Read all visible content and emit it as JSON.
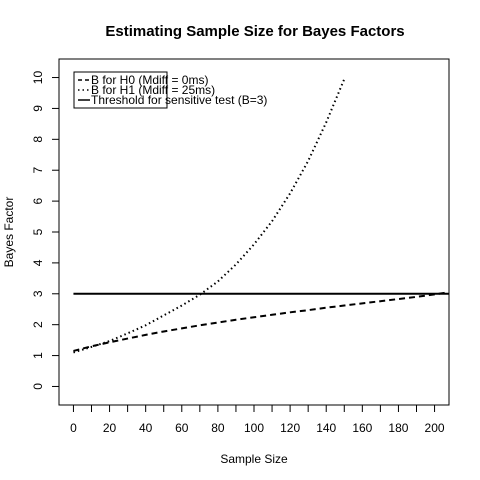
{
  "chart_data": {
    "type": "line",
    "title": "Estimating Sample Size for Bayes Factors",
    "xlabel": "Sample Size",
    "ylabel": "Bayes Factor",
    "xlim": [
      -8,
      208
    ],
    "ylim": [
      -0.6,
      10.6
    ],
    "xticks": [
      0,
      20,
      40,
      60,
      80,
      100,
      120,
      140,
      160,
      180,
      200
    ],
    "xticks_minor": [
      10,
      30,
      50,
      70,
      90,
      110,
      130,
      150,
      170,
      190
    ],
    "yticks": [
      0,
      1,
      2,
      3,
      4,
      5,
      6,
      7,
      8,
      9,
      10
    ],
    "grid": false,
    "legend_position": "top-left",
    "series": [
      {
        "name": "B for H0 (Mdiff = 0ms)",
        "style": "dashed",
        "color": "#000000",
        "x": [
          0,
          10,
          20,
          30,
          40,
          50,
          60,
          70,
          80,
          90,
          100,
          110,
          120,
          130,
          140,
          150,
          160,
          170,
          180,
          190,
          200,
          208
        ],
        "y": [
          1.15,
          1.3,
          1.43,
          1.55,
          1.67,
          1.78,
          1.88,
          1.98,
          2.07,
          2.16,
          2.24,
          2.32,
          2.4,
          2.47,
          2.55,
          2.62,
          2.69,
          2.76,
          2.83,
          2.9,
          2.98,
          3.05
        ]
      },
      {
        "name": "B for H1 (Mdiff = 25ms)",
        "style": "dotted",
        "color": "#000000",
        "x": [
          0,
          10,
          20,
          30,
          40,
          50,
          60,
          70,
          80,
          90,
          100,
          110,
          120,
          130,
          140,
          150
        ],
        "y": [
          1.1,
          1.28,
          1.47,
          1.72,
          1.98,
          2.3,
          2.62,
          2.97,
          3.4,
          3.95,
          4.6,
          5.35,
          6.25,
          7.3,
          8.55,
          9.95
        ]
      },
      {
        "name": "Threshold for sensitive test (B=3)",
        "style": "solid",
        "color": "#000000",
        "x": [
          0,
          208
        ],
        "y": [
          3,
          3
        ]
      }
    ]
  }
}
